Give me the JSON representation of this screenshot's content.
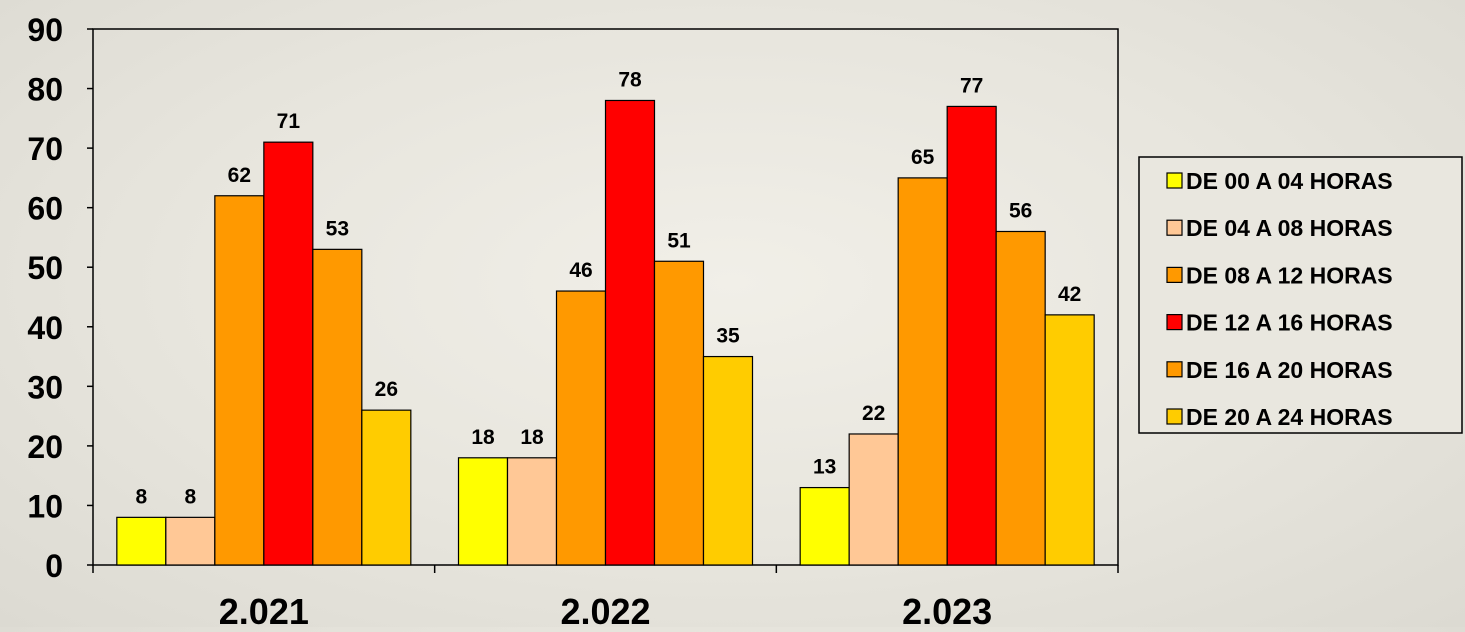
{
  "chart_data": {
    "type": "bar",
    "categories": [
      "2.021",
      "2.022",
      "2.023"
    ],
    "series": [
      {
        "name": "DE 00 A 04 HORAS",
        "color": "#FFFF00",
        "values": [
          8,
          18,
          13
        ]
      },
      {
        "name": "DE 04 A 08 HORAS",
        "color": "#FFC896",
        "values": [
          8,
          18,
          22
        ]
      },
      {
        "name": "DE 08 A 12 HORAS",
        "color": "#FF9900",
        "values": [
          62,
          46,
          65
        ]
      },
      {
        "name": "DE 12 A 16 HORAS",
        "color": "#FF0000",
        "values": [
          71,
          78,
          77
        ]
      },
      {
        "name": "DE 16 A 20 HORAS",
        "color": "#FF9900",
        "values": [
          53,
          51,
          56
        ]
      },
      {
        "name": "DE 20 A 24 HORAS",
        "color": "#FFCC00",
        "values": [
          26,
          35,
          42
        ]
      }
    ],
    "ylim": [
      0,
      90
    ],
    "yticks": [
      0,
      10,
      20,
      30,
      40,
      50,
      60,
      70,
      80,
      90
    ],
    "data_labels": true,
    "grid": false,
    "legend_position": "right"
  }
}
